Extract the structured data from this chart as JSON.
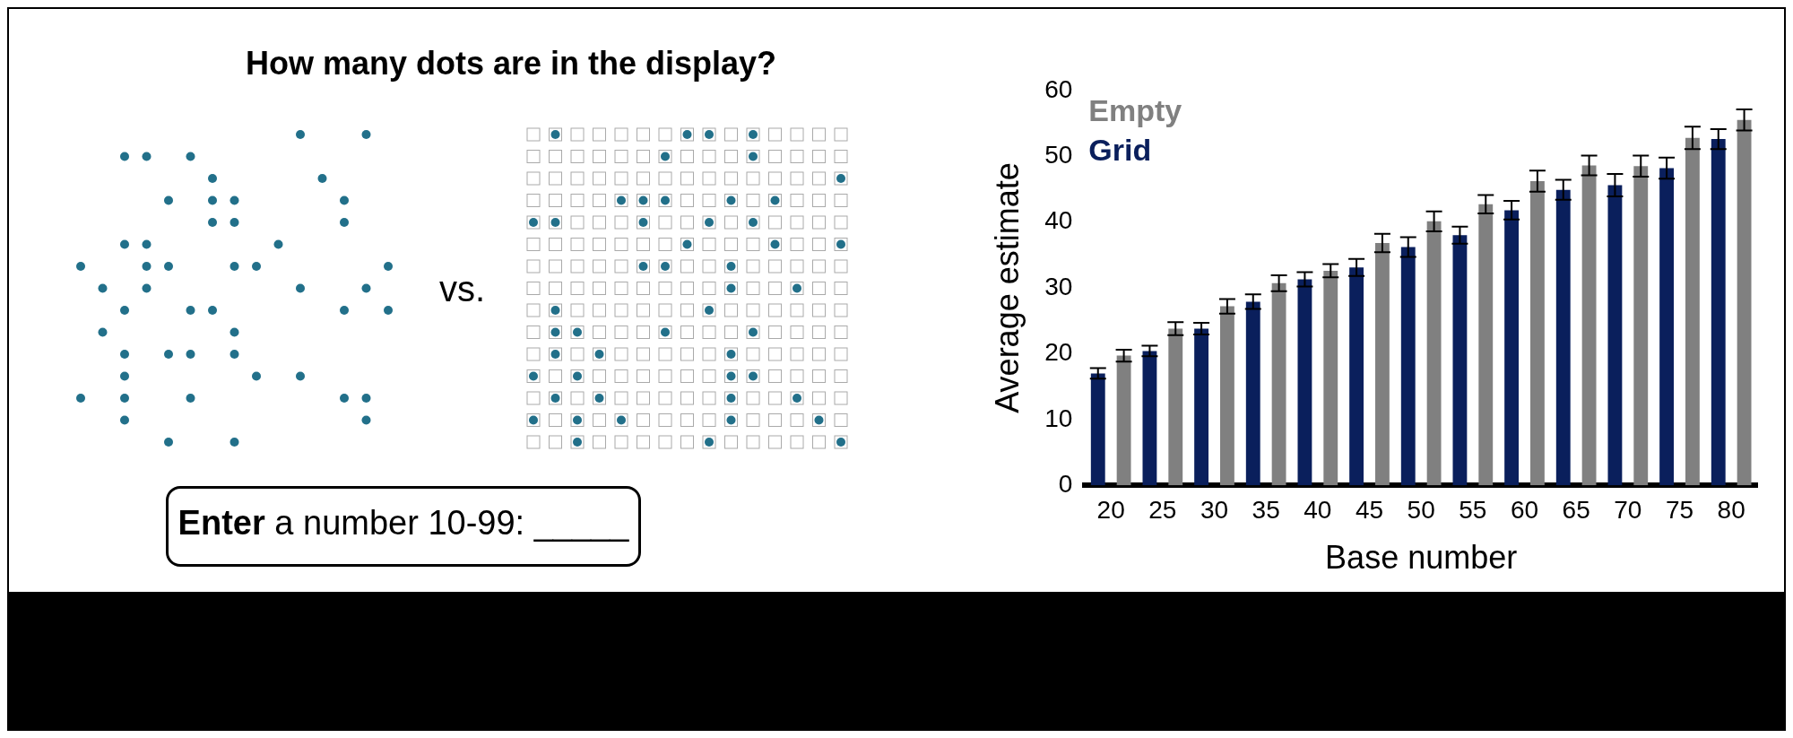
{
  "chart_data": [
    {
      "type": "other",
      "title": "How many dots are in the display?",
      "annotations": [
        "vs.",
        "Enter a number 10-99: _____"
      ]
    },
    {
      "type": "bar",
      "xlabel": "Base number",
      "ylabel": "Average estimate",
      "categories": [
        "20",
        "25",
        "30",
        "35",
        "40",
        "45",
        "50",
        "55",
        "60",
        "65",
        "70",
        "75",
        "80"
      ],
      "series": [
        {
          "name": "Grid",
          "color": "#0a1f5c",
          "values": [
            17.0,
            20.4,
            23.8,
            27.9,
            31.3,
            33.1,
            36.2,
            38.0,
            41.8,
            44.9,
            45.6,
            48.2,
            52.6
          ],
          "errors": [
            0.8,
            0.8,
            0.9,
            1.1,
            1.1,
            1.3,
            1.5,
            1.3,
            1.4,
            1.5,
            1.7,
            1.6,
            1.5
          ]
        },
        {
          "name": "Empty",
          "color": "#808080",
          "values": [
            19.7,
            23.8,
            27.2,
            30.7,
            32.6,
            36.8,
            40.1,
            42.7,
            46.2,
            48.6,
            48.5,
            52.8,
            55.5
          ],
          "errors": [
            0.9,
            1.0,
            1.1,
            1.2,
            1.0,
            1.4,
            1.5,
            1.4,
            1.6,
            1.5,
            1.6,
            1.7,
            1.6
          ]
        }
      ],
      "ylim": [
        0,
        60
      ],
      "yticks": [
        0,
        10,
        20,
        30,
        40,
        50,
        60
      ],
      "grid": false,
      "legend": "top left"
    }
  ]
}
